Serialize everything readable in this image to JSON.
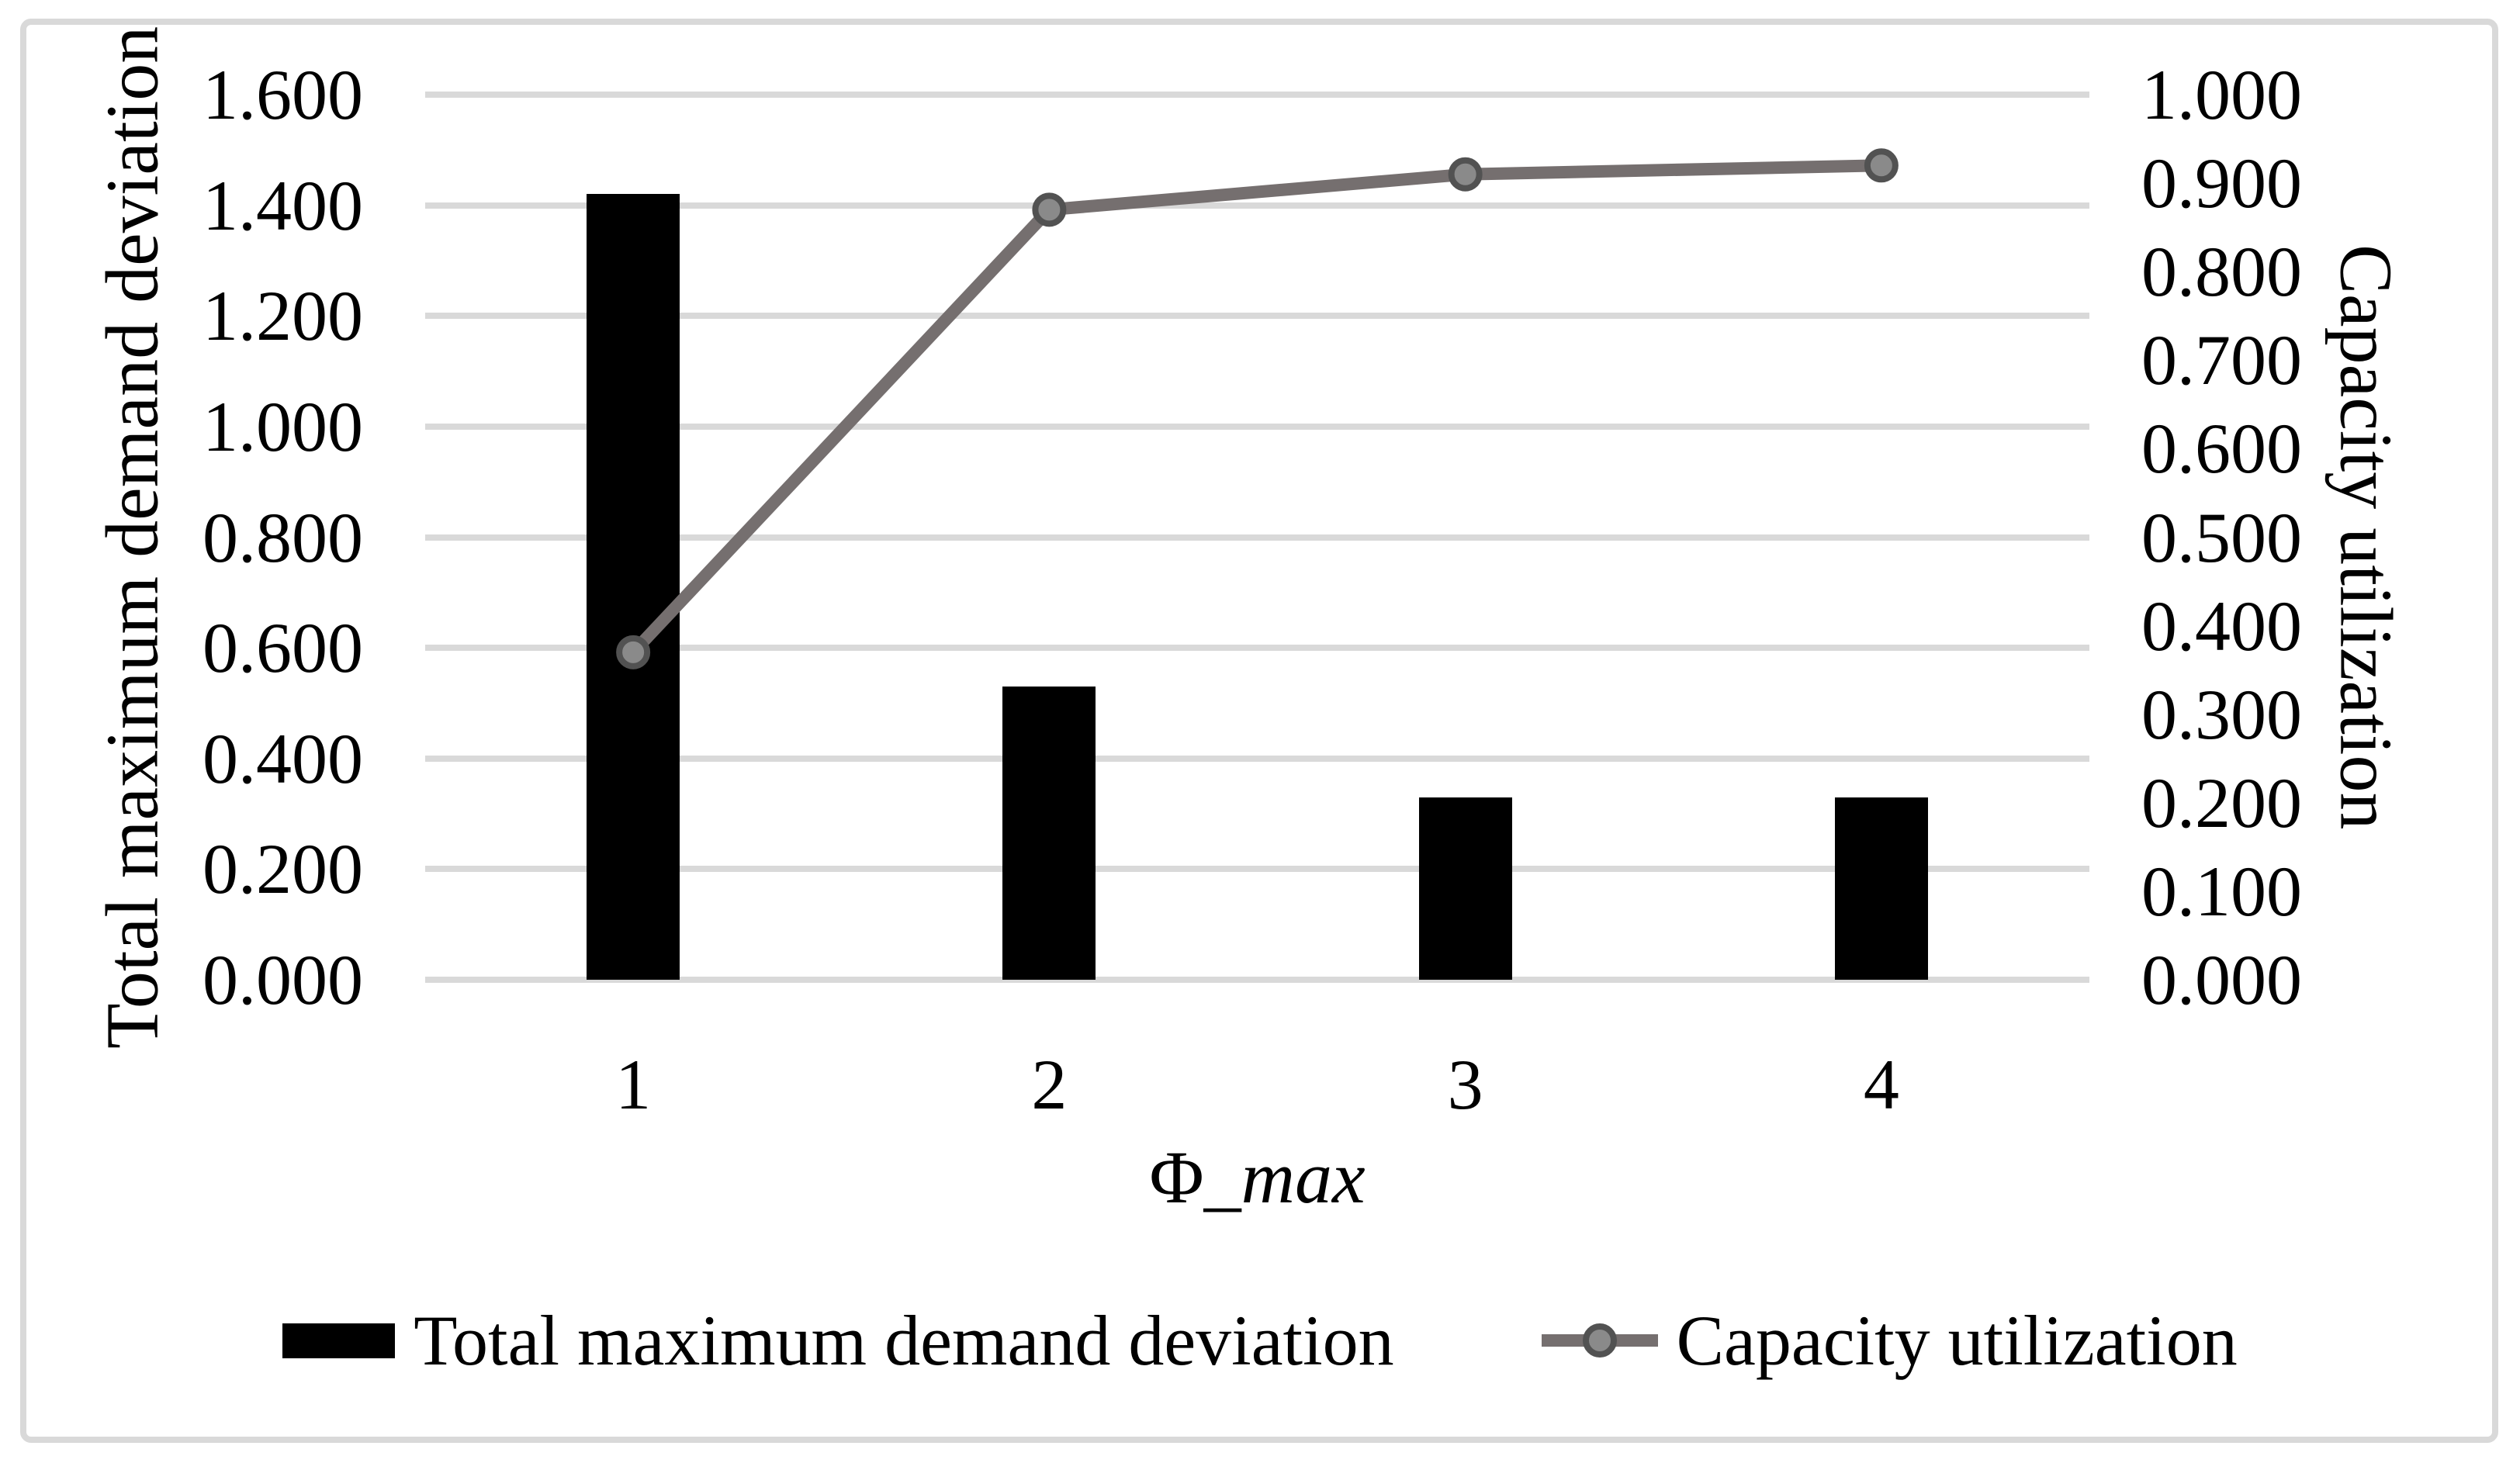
{
  "figure": {
    "background": "#ffffff",
    "frame_color": "#d9d9d9",
    "grid_color": "#d9d9d9",
    "text_color": "#000000"
  },
  "chart_data": {
    "type": "bar+line combo",
    "title": "",
    "xlabel": "Φ_max",
    "categories": [
      "1",
      "2",
      "3",
      "4"
    ],
    "grid": true,
    "legend_position": "bottom",
    "left_axis": {
      "title": "Total maximum demand deviation",
      "min": 0.0,
      "max": 1.6,
      "step": 0.2,
      "tick_labels_top_to_bottom": [
        "1.600",
        "1.400",
        "1.200",
        "1.000",
        "0.800",
        "0.600",
        "0.400",
        "0.200",
        "0.000"
      ]
    },
    "right_axis": {
      "title": "Capacity utilization",
      "min": 0.0,
      "max": 1.0,
      "step": 0.1,
      "tick_labels_top_to_bottom": [
        "1.000",
        "0.900",
        "0.800",
        "0.700",
        "0.600",
        "0.500",
        "0.400",
        "0.300",
        "0.200",
        "0.100",
        "0.000"
      ]
    },
    "series": [
      {
        "name": "Total maximum demand deviation",
        "type": "bar",
        "axis": "left",
        "color": "#000000",
        "values": [
          1.42,
          0.53,
          0.33,
          0.33
        ]
      },
      {
        "name": "Capacity utilization",
        "type": "line",
        "axis": "right",
        "color": "#756f6f",
        "marker": "circle",
        "marker_fill": "#8a8a8a",
        "marker_stroke": "#525252",
        "values": [
          0.37,
          0.87,
          0.91,
          0.92
        ]
      }
    ]
  },
  "axis_titles": {
    "left": "Total maximum demand deviation",
    "right": "Capacity utilization",
    "x_prefix": "Φ_",
    "x_italic": "max"
  },
  "legend": {
    "items": [
      {
        "label": "Total maximum demand deviation",
        "swatch": "black-bar"
      },
      {
        "label": "Capacity utilization",
        "swatch": "gray-line-with-circle-marker"
      }
    ]
  }
}
